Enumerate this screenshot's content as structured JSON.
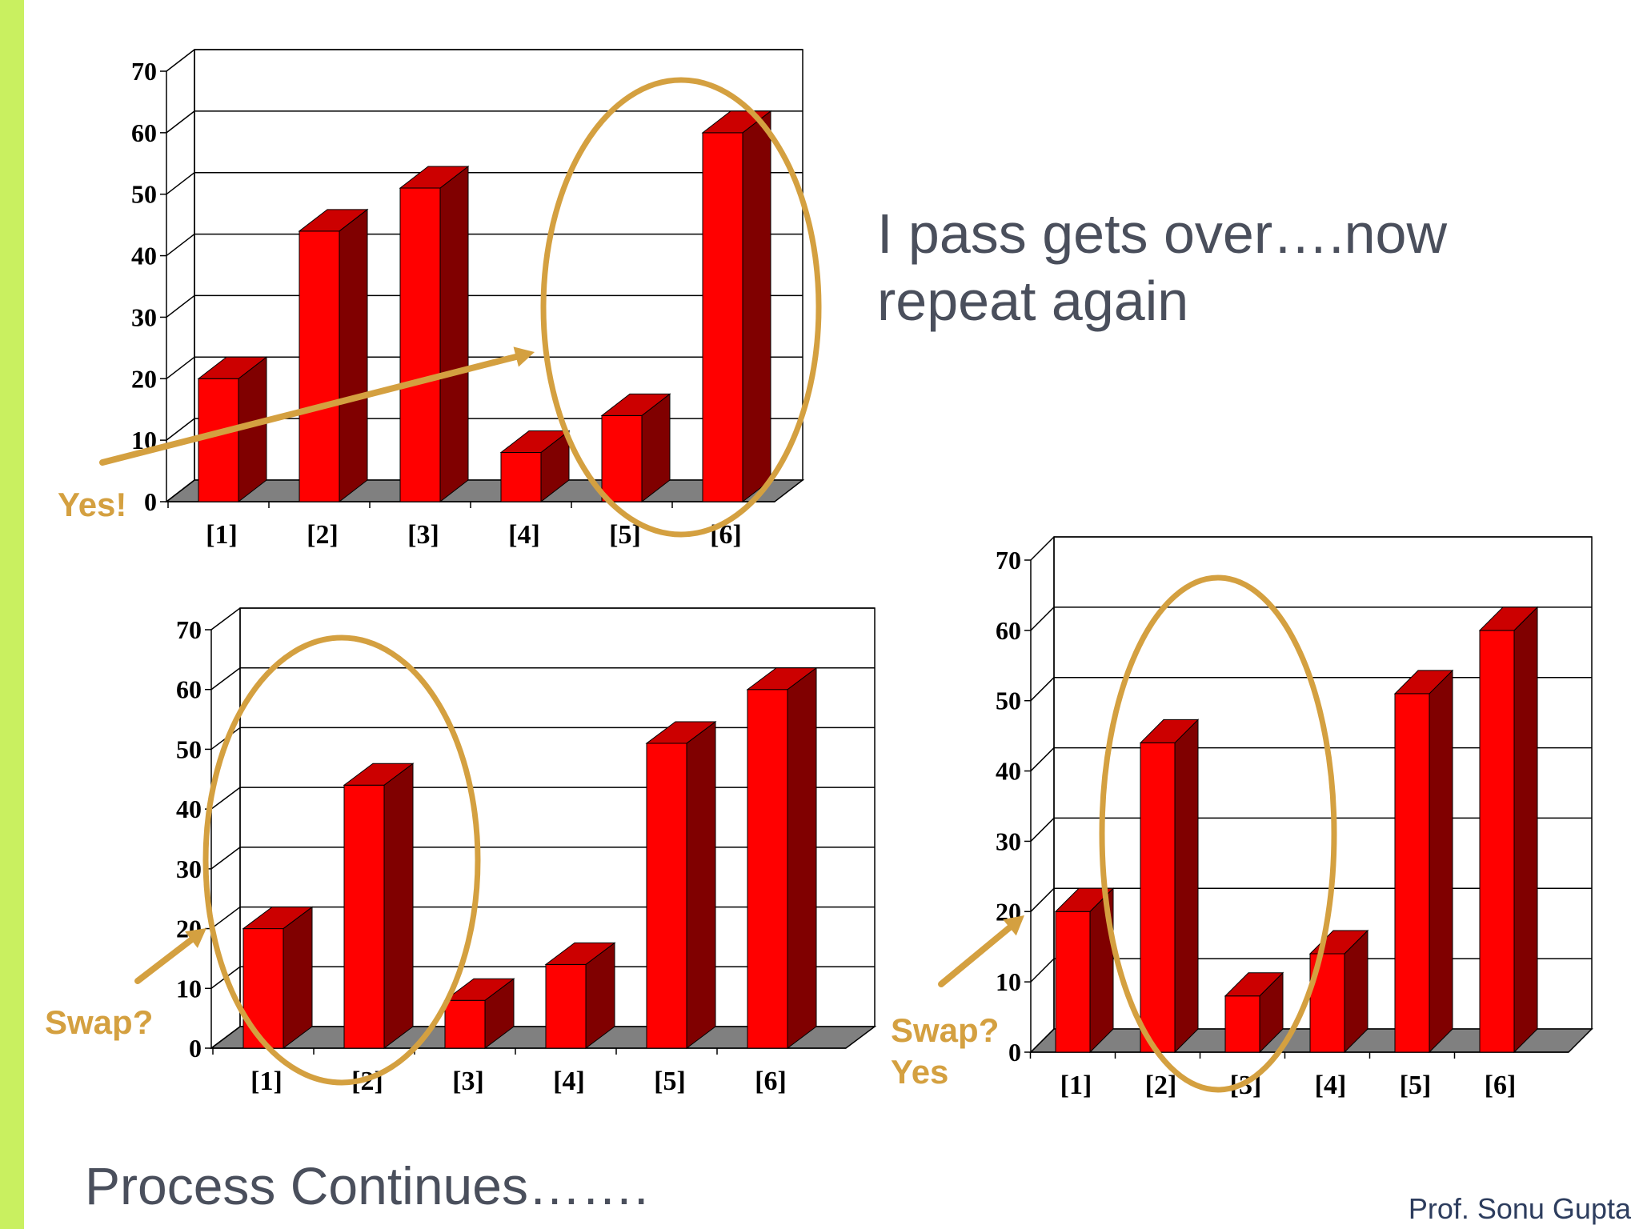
{
  "slide": {
    "note_lines": [
      "I pass gets over….now",
      "repeat again"
    ],
    "footer": "Process Continues…….",
    "author": "Prof. Sonu Gupta",
    "callouts": {
      "chart1": [
        "Yes!"
      ],
      "chart2": [
        "Swap?"
      ],
      "chart3": [
        "Swap?",
        "Yes"
      ]
    }
  },
  "colors": {
    "accent_bar": "#c9f060",
    "bar_front": "#ff0000",
    "bar_top": "#cc0000",
    "bar_side": "#800000",
    "floor": "#808080",
    "highlight": "#d4a040",
    "text": "#4a4f5c"
  },
  "chart_data": [
    {
      "type": "bar",
      "categories": [
        "[1]",
        "[2]",
        "[3]",
        "[4]",
        "[5]",
        "[6]"
      ],
      "values": [
        20,
        44,
        51,
        8,
        14,
        60
      ],
      "yticks": [
        "0",
        "10",
        "20",
        "30",
        "40",
        "50",
        "60",
        "70"
      ],
      "ylim": [
        0,
        70
      ],
      "grid": true
    },
    {
      "type": "bar",
      "categories": [
        "[1]",
        "[2]",
        "[3]",
        "[4]",
        "[5]",
        "[6]"
      ],
      "values": [
        20,
        44,
        8,
        14,
        51,
        60
      ],
      "yticks": [
        "0",
        "10",
        "20",
        "30",
        "40",
        "50",
        "60",
        "70"
      ],
      "ylim": [
        0,
        70
      ],
      "grid": true
    },
    {
      "type": "bar",
      "categories": [
        "[1]",
        "[2]",
        "[3]",
        "[4]",
        "[5]",
        "[6]"
      ],
      "values": [
        20,
        44,
        8,
        14,
        51,
        60
      ],
      "yticks": [
        "0",
        "10",
        "20",
        "30",
        "40",
        "50",
        "60",
        "70"
      ],
      "ylim": [
        0,
        70
      ],
      "grid": true
    }
  ]
}
